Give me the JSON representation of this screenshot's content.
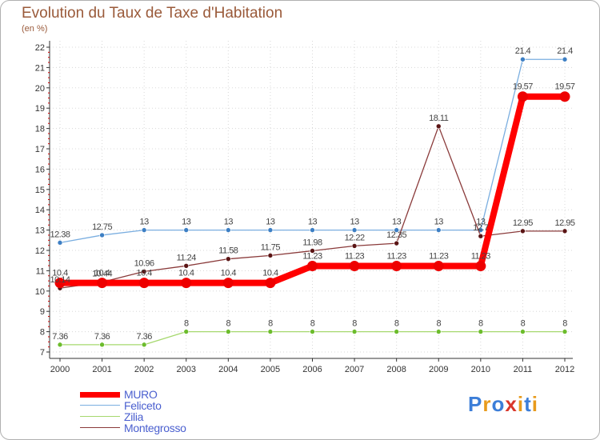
{
  "title": "Evolution du Taux de Taxe d'Habitation",
  "subtitle": "(en %)",
  "logo": {
    "text": "Proxiti",
    "letters": [
      "P",
      "r",
      "o",
      "x",
      "i",
      "t",
      "i"
    ],
    "colors": [
      "#3c7ed8",
      "#e89b1c",
      "#3c7ed8",
      "#d9362b",
      "#e89b1c",
      "#3c7ed8",
      "#e89b1c"
    ]
  },
  "chart_data": {
    "type": "line",
    "title": "Evolution du Taux de Taxe d'Habitation",
    "ylabel": "(en %)",
    "xlabel": "",
    "ylim": [
      7,
      22
    ],
    "yticks": [
      7,
      8,
      9,
      10,
      11,
      12,
      13,
      14,
      15,
      16,
      17,
      18,
      19,
      20,
      21,
      22
    ],
    "categories": [
      "2000",
      "2001",
      "2002",
      "2003",
      "2004",
      "2005",
      "2006",
      "2007",
      "2008",
      "2009",
      "2010",
      "2011",
      "2012"
    ],
    "legend_position": "bottom-left",
    "series": [
      {
        "name": "Feliceto",
        "color": "#7aaee0",
        "marker": "#3d7fc4",
        "width": "thin",
        "values": [
          12.38,
          12.75,
          13,
          13,
          13,
          13,
          13,
          13,
          13,
          13,
          13,
          21.4,
          21.4
        ],
        "labels": [
          "12.38",
          "12.75",
          "13",
          "13",
          "13",
          "13",
          "13",
          "13",
          "13",
          "13",
          "13",
          "21.4",
          "21.4"
        ]
      },
      {
        "name": "Zilia",
        "color": "#a6d86e",
        "marker": "#6cbc2c",
        "width": "thin",
        "values": [
          7.36,
          7.36,
          7.36,
          8,
          8,
          8,
          8,
          8,
          8,
          8,
          8,
          8,
          8
        ],
        "labels": [
          "7.36",
          "7.36",
          "7.36",
          "8",
          "8",
          "8",
          "8",
          "8",
          "8",
          "8",
          "8",
          "8",
          "8"
        ]
      },
      {
        "name": "Montegrosso",
        "color": "#8a3a3a",
        "marker": "#5a1414",
        "width": "thin",
        "values": [
          10.14,
          10.44,
          10.96,
          11.24,
          11.58,
          11.75,
          11.98,
          12.22,
          12.35,
          18.11,
          12.7,
          12.95,
          12.95
        ],
        "labels": [
          "10.14",
          "10.44",
          "10.96",
          "11.24",
          "11.58",
          "11.75",
          "11.98",
          "12.22",
          "12.35",
          "18.11",
          "12.7",
          "12.95",
          "12.95"
        ]
      },
      {
        "name": "MURO",
        "color": "#ff0000",
        "marker": "#ee0000",
        "width": "thick",
        "values": [
          10.4,
          10.4,
          10.4,
          10.4,
          10.4,
          10.4,
          11.23,
          11.23,
          11.23,
          11.23,
          11.23,
          19.57,
          19.57
        ],
        "labels": [
          "10.4",
          "10.4",
          "10.4",
          "10.4",
          "10.4",
          "10.4",
          "11.23",
          "11.23",
          "11.23",
          "11.23",
          "11.23",
          "19.57",
          "19.57"
        ]
      }
    ],
    "legend": [
      "MURO",
      "Feliceto",
      "Zilia",
      "Montegrosso"
    ]
  }
}
